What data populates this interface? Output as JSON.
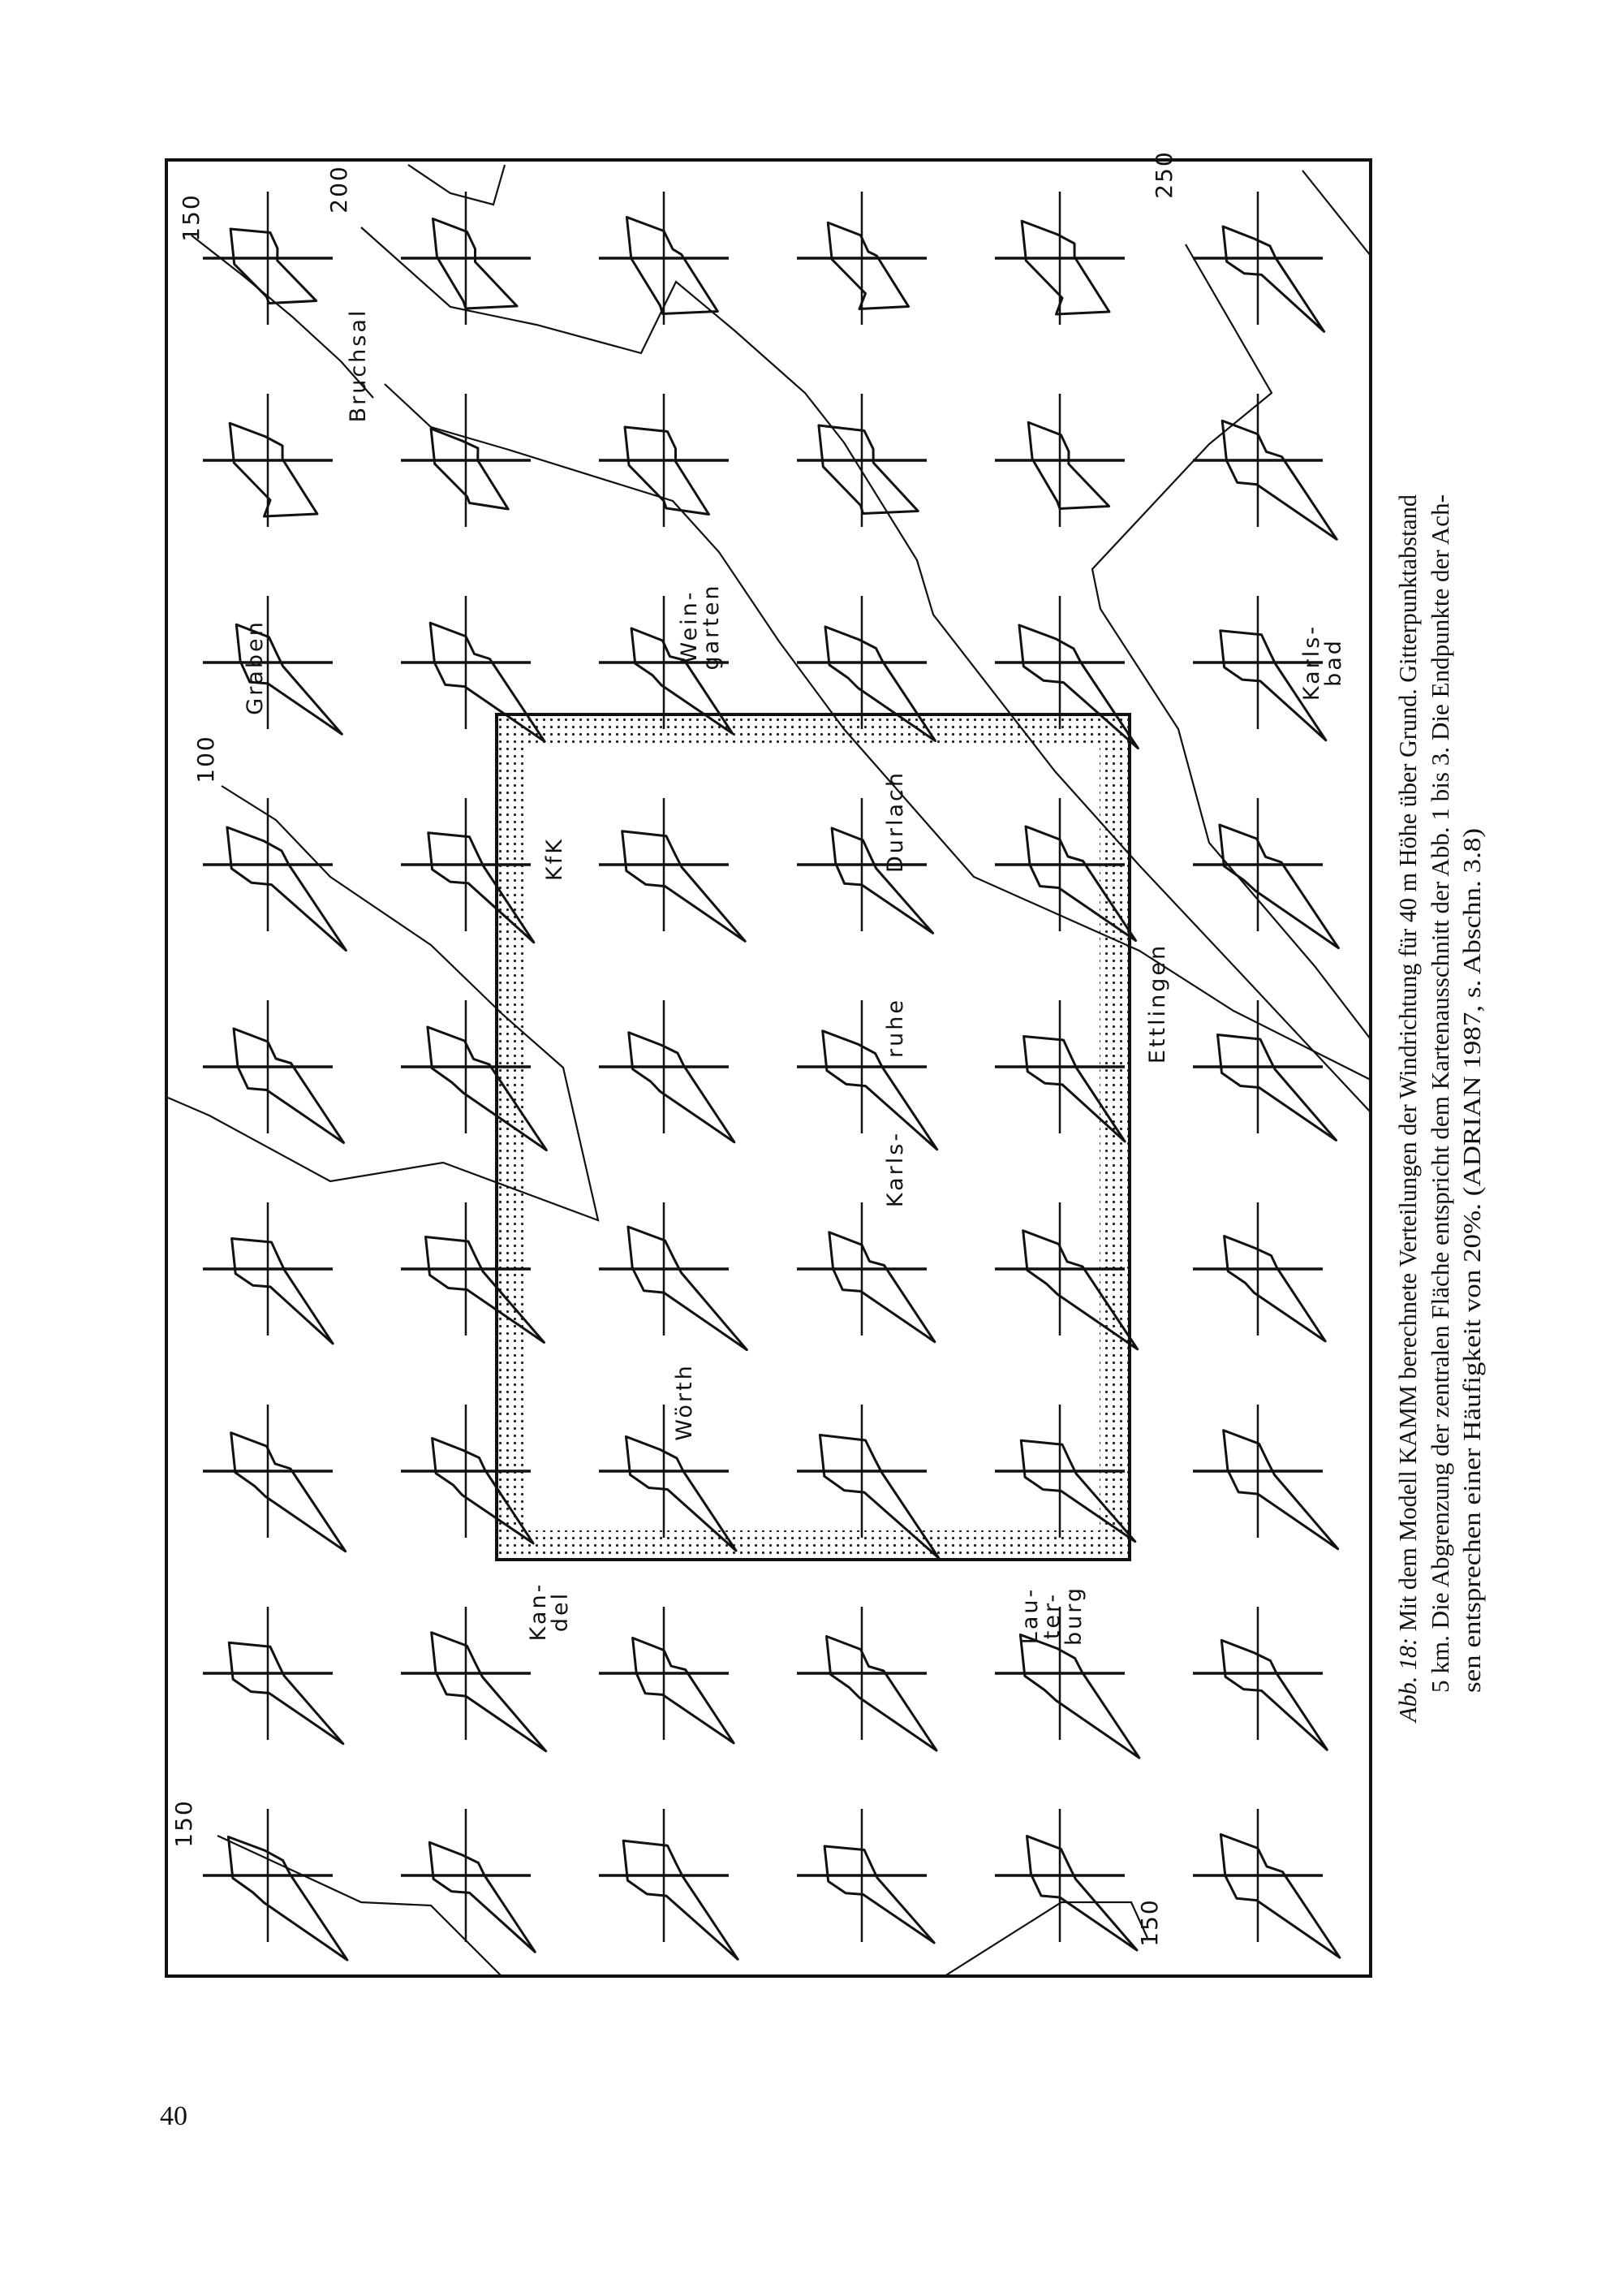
{
  "page_number": "40",
  "caption": {
    "label": "Abb. 18:",
    "line1": " Mit dem Modell KAMM berechnete Verteilungen der Windrichtung für 40 m Höhe über Grund. Gitterpunktabstand",
    "line2": "5 km. Die Abgrenzung der zentralen Fläche entspricht dem Kartenausschnitt der Abb. 1 bis 3. Die Endpunkte der Ach-",
    "line3": "sen entsprechen einer Häufigkeit von 20%. (ADRIAN 1987, s. Abschn. 3.8)"
  },
  "map": {
    "places": {
      "bruchsal": "Bruchsal",
      "graben": "Graben",
      "weingarten": [
        "Wein-",
        "garten"
      ],
      "karlsbad": [
        "Karls-",
        "bad"
      ],
      "durlach": "Durlach",
      "kfk": "KfK",
      "ettlingen": "Ettlingen",
      "karlsruhe_1": "Karls-",
      "karlsruhe_2": "ruhe",
      "woerth": "Wörth",
      "kandel": [
        "Kan-",
        "del"
      ],
      "lauterburg": [
        "Lau-",
        "ter-",
        "burg"
      ]
    },
    "contour_labels": {
      "top_left_150": "150",
      "top_200": "200",
      "top_250": "250",
      "left_100": "100",
      "bottom_left_150": "150",
      "bottom_150": "150"
    }
  }
}
